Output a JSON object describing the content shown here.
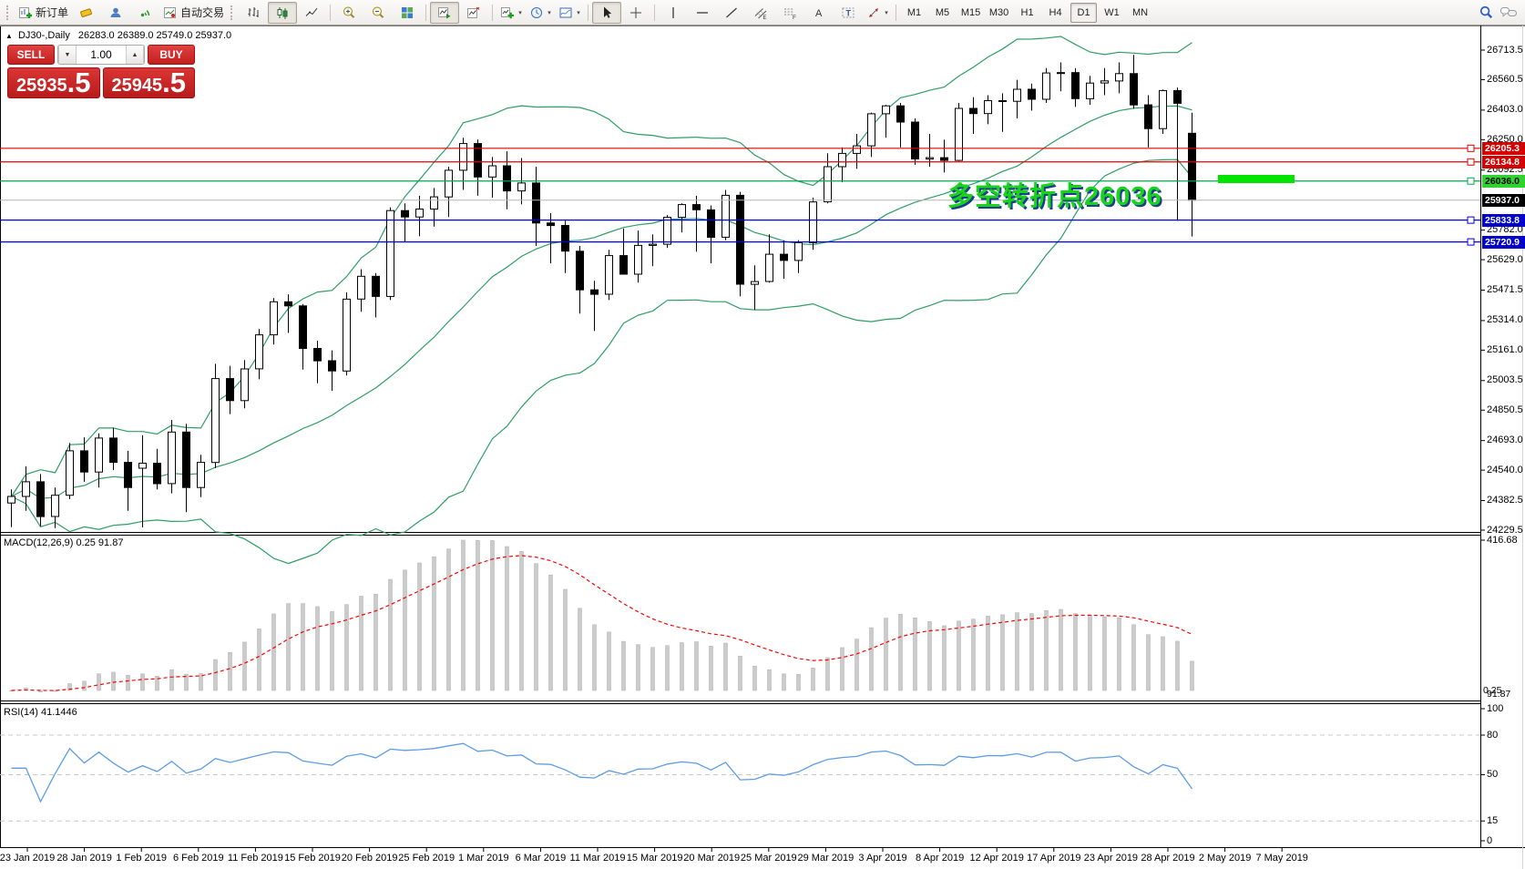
{
  "toolbar": {
    "new_order_label": "新订单",
    "autotrade_label": "自动交易",
    "timeframes": [
      "M1",
      "M5",
      "M15",
      "M30",
      "H1",
      "H4",
      "D1",
      "W1",
      "MN"
    ],
    "active_timeframe": "D1"
  },
  "quote_panel": {
    "sell_label": "SELL",
    "buy_label": "BUY",
    "volume": "1.00",
    "sell_price_main": "25935",
    "sell_price_frac": ".5",
    "buy_price_main": "25945",
    "buy_price_frac": ".5"
  },
  "chart_title": {
    "symbol": "DJ30-,Daily",
    "ohlc_text": "26283.0 26389.0 25749.0 25937.0"
  },
  "annotation": {
    "text": "多空转折点26036"
  },
  "chart_data": {
    "type": "candlestick",
    "symbol": "DJ30",
    "timeframe": "Daily",
    "current_bar": {
      "open": 26283.0,
      "high": 26389.0,
      "low": 25749.0,
      "close": 25937.0
    },
    "y_axis_ticks": [
      26713.5,
      26560.5,
      26403.0,
      26250.0,
      26092.5,
      25782.0,
      25629.0,
      25471.5,
      25314.0,
      25161.0,
      25003.5,
      24850.5,
      24693.0,
      24540.0,
      24382.5,
      24229.5
    ],
    "x_axis_dates": [
      "23 Jan 2019",
      "28 Jan 2019",
      "1 Feb 2019",
      "6 Feb 2019",
      "11 Feb 2019",
      "15 Feb 2019",
      "20 Feb 2019",
      "25 Feb 2019",
      "1 Mar 2019",
      "6 Mar 2019",
      "11 Mar 2019",
      "15 Mar 2019",
      "20 Mar 2019",
      "25 Mar 2019",
      "29 Mar 2019",
      "3 Apr 2019",
      "8 Apr 2019",
      "12 Apr 2019",
      "17 Apr 2019",
      "23 Apr 2019",
      "28 Apr 2019",
      "2 May 2019",
      "7 May 2019"
    ],
    "hlines": [
      {
        "price": 26205.3,
        "color": "#e60000",
        "label_bg": "#d40000",
        "label_fg": "#ffffff",
        "current": false
      },
      {
        "price": 26134.8,
        "color": "#e60000",
        "label_bg": "#d40000",
        "label_fg": "#ffffff",
        "current": false
      },
      {
        "price": 26036.0,
        "color": "#00a84e",
        "label_bg": "#2ed32e",
        "label_fg": "#000000",
        "current": false
      },
      {
        "price": 25937.0,
        "color": "#b6b6b6",
        "label_bg": "#000000",
        "label_fg": "#ffffff",
        "current": true
      },
      {
        "price": 25833.8,
        "color": "#0000e0",
        "label_bg": "#0000cc",
        "label_fg": "#ffffff",
        "current": false
      },
      {
        "price": 25720.9,
        "color": "#0000e0",
        "label_bg": "#0000cc",
        "label_fg": "#ffffff",
        "current": false
      }
    ],
    "highlight": {
      "price": 26036.0,
      "color": "#00e400"
    },
    "indicators": {
      "bollinger": {
        "color": "#2f9e63"
      },
      "macd": {
        "label": "MACD(12,26,9) 0.25 91.87",
        "scale_max_label": "416.68",
        "value_labels": [
          "0.25",
          "91.87"
        ],
        "histogram_color": "#cbcbcb",
        "signal_color": "#ff0000"
      },
      "rsi": {
        "label": "RSI(14) 41.1446",
        "value": 41.1446,
        "levels": [
          80,
          50,
          15
        ],
        "axis_ticks": [
          100,
          80,
          50,
          15,
          0
        ],
        "line_color": "#5d9ce6"
      }
    },
    "ohlc": [
      [
        24370,
        24440,
        24245,
        24404
      ],
      [
        24404,
        24560,
        24330,
        24480
      ],
      [
        24480,
        24520,
        24250,
        24300
      ],
      [
        24300,
        24450,
        24240,
        24410
      ],
      [
        24410,
        24680,
        24390,
        24640
      ],
      [
        24640,
        24710,
        24480,
        24530
      ],
      [
        24530,
        24730,
        24450,
        24706
      ],
      [
        24706,
        24760,
        24540,
        24580
      ],
      [
        24580,
        24640,
        24330,
        24450
      ],
      [
        24550,
        24721,
        24244,
        24576
      ],
      [
        24576,
        24650,
        24440,
        24470
      ],
      [
        24470,
        24800,
        24420,
        24737
      ],
      [
        24737,
        24780,
        24323,
        24450
      ],
      [
        24450,
        24620,
        24400,
        24580
      ],
      [
        24580,
        25090,
        24550,
        25014
      ],
      [
        25014,
        25080,
        24830,
        24900
      ],
      [
        24900,
        25110,
        24860,
        25064
      ],
      [
        25064,
        25270,
        25010,
        25240
      ],
      [
        25240,
        25430,
        25190,
        25411
      ],
      [
        25411,
        25450,
        25250,
        25390
      ],
      [
        25390,
        25400,
        25060,
        25170
      ],
      [
        25170,
        25210,
        24990,
        25106
      ],
      [
        25106,
        25160,
        24950,
        25053
      ],
      [
        25053,
        25460,
        25030,
        25425
      ],
      [
        25425,
        25580,
        25360,
        25543
      ],
      [
        25543,
        25560,
        25330,
        25439
      ],
      [
        25439,
        25900,
        25420,
        25883
      ],
      [
        25883,
        25920,
        25720,
        25850
      ],
      [
        25850,
        25960,
        25750,
        25891
      ],
      [
        25891,
        26000,
        25800,
        25954
      ],
      [
        25954,
        26110,
        25850,
        26092
      ],
      [
        26092,
        26260,
        25990,
        26230
      ],
      [
        26230,
        26250,
        25960,
        26057
      ],
      [
        26057,
        26160,
        25950,
        26115
      ],
      [
        26115,
        26190,
        25890,
        25985
      ],
      [
        25985,
        26155,
        25915,
        26026
      ],
      [
        26026,
        26110,
        25700,
        25819
      ],
      [
        25819,
        25870,
        25610,
        25806
      ],
      [
        25806,
        25830,
        25560,
        25673
      ],
      [
        25673,
        25700,
        25350,
        25473
      ],
      [
        25473,
        25520,
        25260,
        25450
      ],
      [
        25450,
        25680,
        25420,
        25650
      ],
      [
        25650,
        25790,
        25560,
        25554
      ],
      [
        25554,
        25780,
        25510,
        25703
      ],
      [
        25703,
        25760,
        25595,
        25709
      ],
      [
        25709,
        25860,
        25690,
        25848
      ],
      [
        25848,
        25920,
        25770,
        25914
      ],
      [
        25914,
        25960,
        25670,
        25887
      ],
      [
        25887,
        25910,
        25610,
        25745
      ],
      [
        25745,
        25990,
        25730,
        25962
      ],
      [
        25962,
        25980,
        25440,
        25502
      ],
      [
        25502,
        25600,
        25370,
        25516
      ],
      [
        25516,
        25760,
        25510,
        25657
      ],
      [
        25657,
        25730,
        25530,
        25625
      ],
      [
        25625,
        25730,
        25560,
        25717
      ],
      [
        25717,
        25950,
        25680,
        25928
      ],
      [
        25928,
        26180,
        25920,
        26110
      ],
      [
        26110,
        26210,
        26030,
        26179
      ],
      [
        26179,
        26280,
        26100,
        26218
      ],
      [
        26218,
        26390,
        26160,
        26384
      ],
      [
        26384,
        26430,
        26260,
        26425
      ],
      [
        26425,
        26440,
        26210,
        26341
      ],
      [
        26341,
        26360,
        26120,
        26150
      ],
      [
        26150,
        26280,
        26110,
        26157
      ],
      [
        26157,
        26250,
        26080,
        26143
      ],
      [
        26143,
        26440,
        26140,
        26412
      ],
      [
        26412,
        26470,
        26280,
        26385
      ],
      [
        26385,
        26480,
        26330,
        26452
      ],
      [
        26452,
        26490,
        26290,
        26449
      ],
      [
        26449,
        26560,
        26360,
        26511
      ],
      [
        26511,
        26540,
        26400,
        26459
      ],
      [
        26459,
        26620,
        26440,
        26595
      ],
      [
        26595,
        26650,
        26500,
        26597
      ],
      [
        26597,
        26620,
        26420,
        26462
      ],
      [
        26462,
        26580,
        26430,
        26543
      ],
      [
        26543,
        26620,
        26480,
        26554
      ],
      [
        26554,
        26650,
        26490,
        26592
      ],
      [
        26592,
        26689,
        26410,
        26430
      ],
      [
        26430,
        26480,
        26210,
        26307
      ],
      [
        26307,
        26510,
        26280,
        26504
      ],
      [
        26504,
        26520,
        25830,
        26438
      ],
      [
        26283,
        26389,
        25749,
        25937
      ]
    ]
  }
}
